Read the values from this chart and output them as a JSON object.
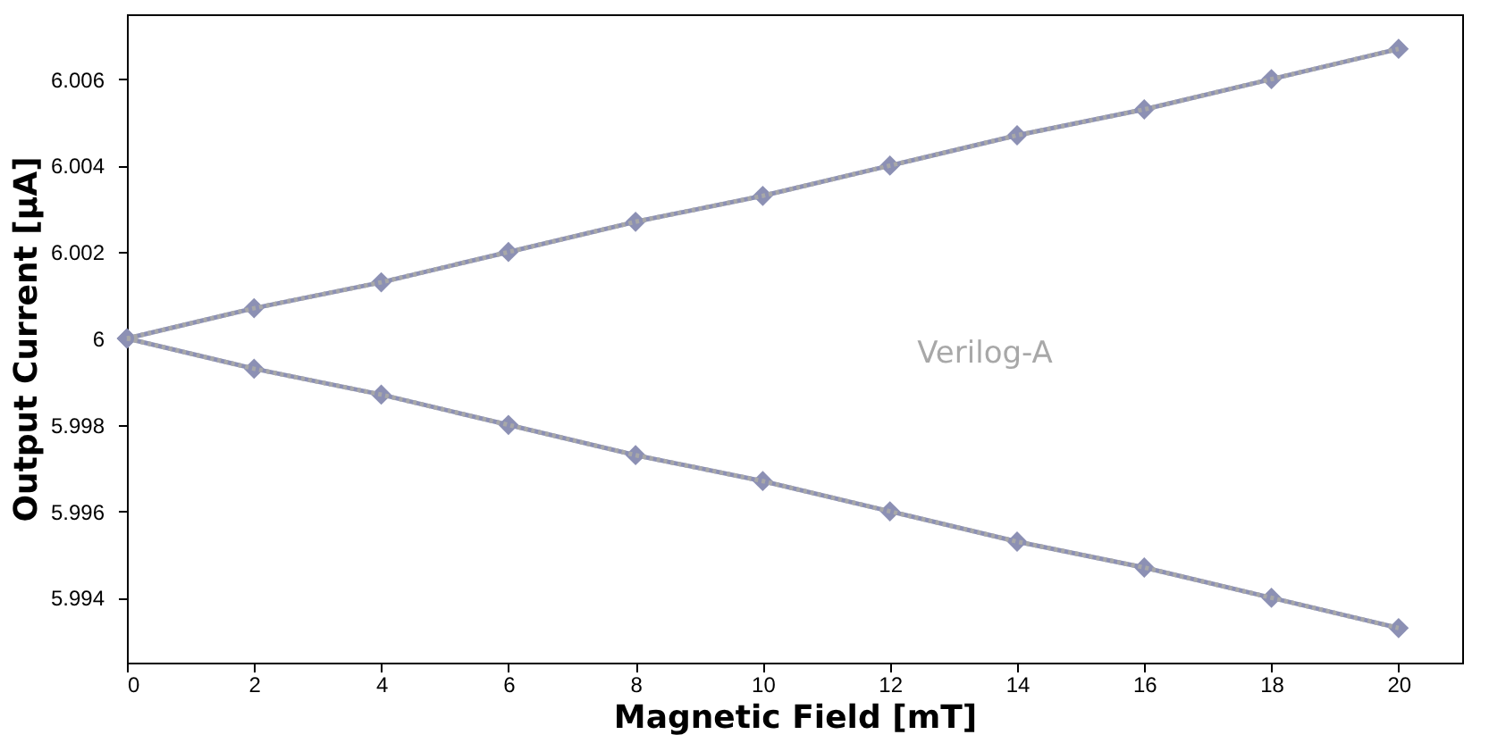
{
  "chart_data": {
    "type": "line",
    "xlabel": "Magnetic Field [mT]",
    "ylabel": "Output Current [µA]",
    "x": [
      0,
      2,
      4,
      6,
      8,
      10,
      12,
      14,
      16,
      18,
      20
    ],
    "series": [
      {
        "color": "#8c90b4",
        "marker": "diamond",
        "line_style": "solid",
        "values": [
          6,
          6.0007,
          6.0013,
          6.002,
          6.0027,
          6.0033,
          6.004,
          6.0047,
          6.0053,
          6.006,
          6.0067
        ]
      },
      {
        "color": "#8c90b4",
        "marker": "diamond",
        "line_style": "solid",
        "values": [
          6,
          5.9993,
          5.9987,
          5.998,
          5.9973,
          5.9967,
          5.996,
          5.9953,
          5.9947,
          5.994,
          5.9933
        ]
      },
      {
        "color": "#a8a8a8",
        "marker": "none",
        "line_style": "dotted",
        "values": [
          6,
          6.0007,
          6.0013,
          6.002,
          6.0027,
          6.0033,
          6.004,
          6.0047,
          6.0053,
          6.006,
          6.0067
        ]
      },
      {
        "color": "#a8a8a8",
        "marker": "none",
        "line_style": "dotted",
        "values": [
          6,
          5.9993,
          5.9987,
          5.998,
          5.9973,
          5.9967,
          5.996,
          5.9953,
          5.9947,
          5.994,
          5.9933
        ]
      }
    ],
    "annotations": [
      "Verilog-A"
    ],
    "xlim": [
      0,
      21
    ],
    "xticks": [
      0,
      2,
      4,
      6,
      8,
      10,
      12,
      14,
      16,
      18,
      20
    ],
    "ylim": [
      5.9925,
      6.0075
    ],
    "yticks": [
      5.994,
      5.996,
      5.998,
      6,
      6.002,
      6.004,
      6.006
    ],
    "grid": false
  }
}
